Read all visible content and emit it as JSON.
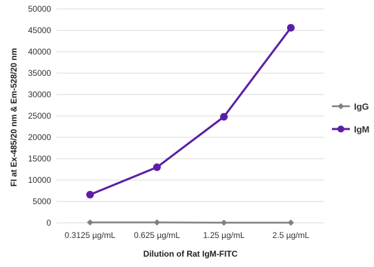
{
  "chart_data": {
    "type": "line",
    "title": "",
    "xlabel": "Dilution of Rat IgM-FITC",
    "ylabel": "FI at Ex-485/20 nm & Em-528/20 nm",
    "categories": [
      "0.3125 µg/mL",
      "0.625 µg/mL",
      "1.25 µg/mL",
      "2.5 µg/mL"
    ],
    "ylim": [
      0,
      50000
    ],
    "yticks": [
      0,
      5000,
      10000,
      15000,
      20000,
      25000,
      30000,
      35000,
      40000,
      45000,
      50000
    ],
    "grid": true,
    "legend_position": "right",
    "series": [
      {
        "name": "IgG",
        "values": [
          100,
          100,
          50,
          50
        ],
        "color": "#808080",
        "marker": "diamond"
      },
      {
        "name": "IgM",
        "values": [
          6600,
          13000,
          24800,
          45600
        ],
        "color": "#5b1fa5",
        "marker": "circle"
      }
    ]
  }
}
